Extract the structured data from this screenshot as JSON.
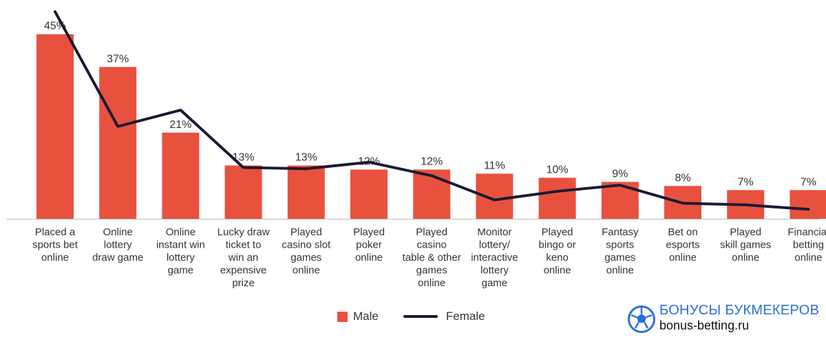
{
  "chart_data": {
    "type": "bar",
    "categories": [
      [
        "Placed a",
        "sports bet",
        "online"
      ],
      [
        "Online",
        "lottery",
        "draw game"
      ],
      [
        "Online",
        "instant win",
        "lottery",
        "game"
      ],
      [
        "Lucky draw",
        "ticket to",
        "win an",
        "expensive",
        "prize"
      ],
      [
        "Played",
        "casino slot",
        "games",
        "online"
      ],
      [
        "Played",
        "poker",
        "online"
      ],
      [
        "Played",
        "casino",
        "table & other",
        "games",
        "online"
      ],
      [
        "Monitor",
        "lottery/",
        "interactive",
        "lottery",
        "game"
      ],
      [
        "Played",
        "bingo or",
        "keno",
        "online"
      ],
      [
        "Fantasy",
        "sports",
        "games",
        "online"
      ],
      [
        "Bet on",
        "esports",
        "online"
      ],
      [
        "Played",
        "skill games",
        "online"
      ],
      [
        "Financial",
        "betting",
        "online"
      ]
    ],
    "series": [
      {
        "name": "Male",
        "type": "bar",
        "values": [
          45,
          37,
          21,
          13,
          13,
          12,
          12,
          11,
          10,
          9,
          8,
          7,
          7
        ],
        "labels": [
          "45%",
          "37%",
          "21%",
          "13%",
          "13%",
          "12%",
          "12%",
          "11%",
          "10%",
          "9%",
          "8%",
          "7%",
          "7%"
        ]
      },
      {
        "name": "Female",
        "type": "line",
        "values": [
          50.5,
          22.5,
          26.5,
          12.5,
          12.2,
          13.8,
          10.5,
          4.6,
          6.7,
          8.2,
          3.8,
          3.4,
          2.3
        ]
      }
    ],
    "ylim": [
      0,
      52
    ],
    "grid": false,
    "legend_position": "bottom-center",
    "colors": {
      "male": "#e8513e",
      "female": "#1b1a33",
      "axis": "#bbbbbb",
      "text": "#333333"
    }
  },
  "legend": {
    "male_label": "Male",
    "female_label": "Female"
  },
  "watermark": {
    "line1": "БОНУСЫ БУКМЕКЕРОВ",
    "line2": "bonus-betting.ru",
    "icon": "soccer-ball-icon"
  }
}
